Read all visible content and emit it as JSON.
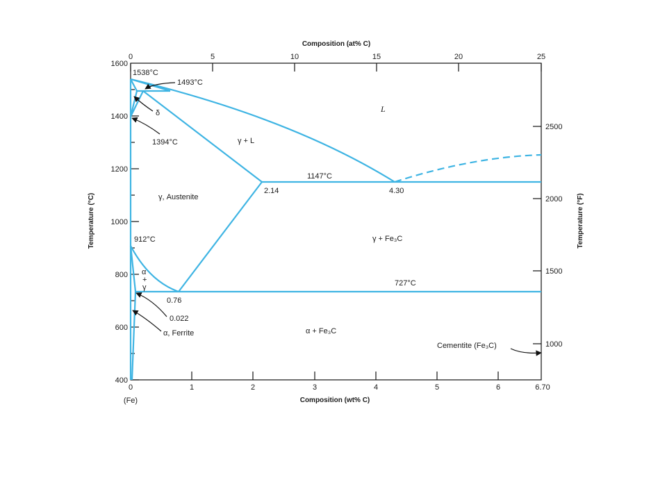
{
  "diagram": {
    "top_axis_title": "Composition (at% C)",
    "top_ticks": [
      "0",
      "5",
      "10",
      "15",
      "20",
      "25"
    ],
    "bottom_axis_title": "Composition (wt% C)",
    "bottom_ticks": [
      "0",
      "1",
      "2",
      "3",
      "4",
      "5",
      "6",
      "6.70"
    ],
    "bottom_origin_label": "(Fe)",
    "left_axis_title": "Temperature (°C)",
    "left_ticks": [
      "400",
      "600",
      "800",
      "1000",
      "1200",
      "1400",
      "1600"
    ],
    "right_axis_title": "Temperature (°F)",
    "right_ticks": [
      "1000",
      "1500",
      "2000",
      "2500"
    ],
    "line_color": "#3eb4e3",
    "regions": {
      "liquid": "L",
      "gamma_liquid": "γ + L",
      "austenite": "γ, Austenite",
      "gamma_cementite": "γ + Fe₃C",
      "alpha_gamma_1": "α",
      "alpha_gamma_2": "+",
      "alpha_gamma_3": "γ",
      "alpha_cementite": "α + Fe₃C",
      "delta": "δ"
    },
    "annotations": {
      "t1538": "1538°C",
      "t1493": "1493°C",
      "t1394": "1394°C",
      "t1147": "1147°C",
      "t912": "912°C",
      "t727": "727°C",
      "c214": "2.14",
      "c430": "4.30",
      "c076": "0.76",
      "c0022": "0.022",
      "ferrite": "α, Ferrite",
      "cementite": "Cementite (Fe₃C)"
    }
  }
}
